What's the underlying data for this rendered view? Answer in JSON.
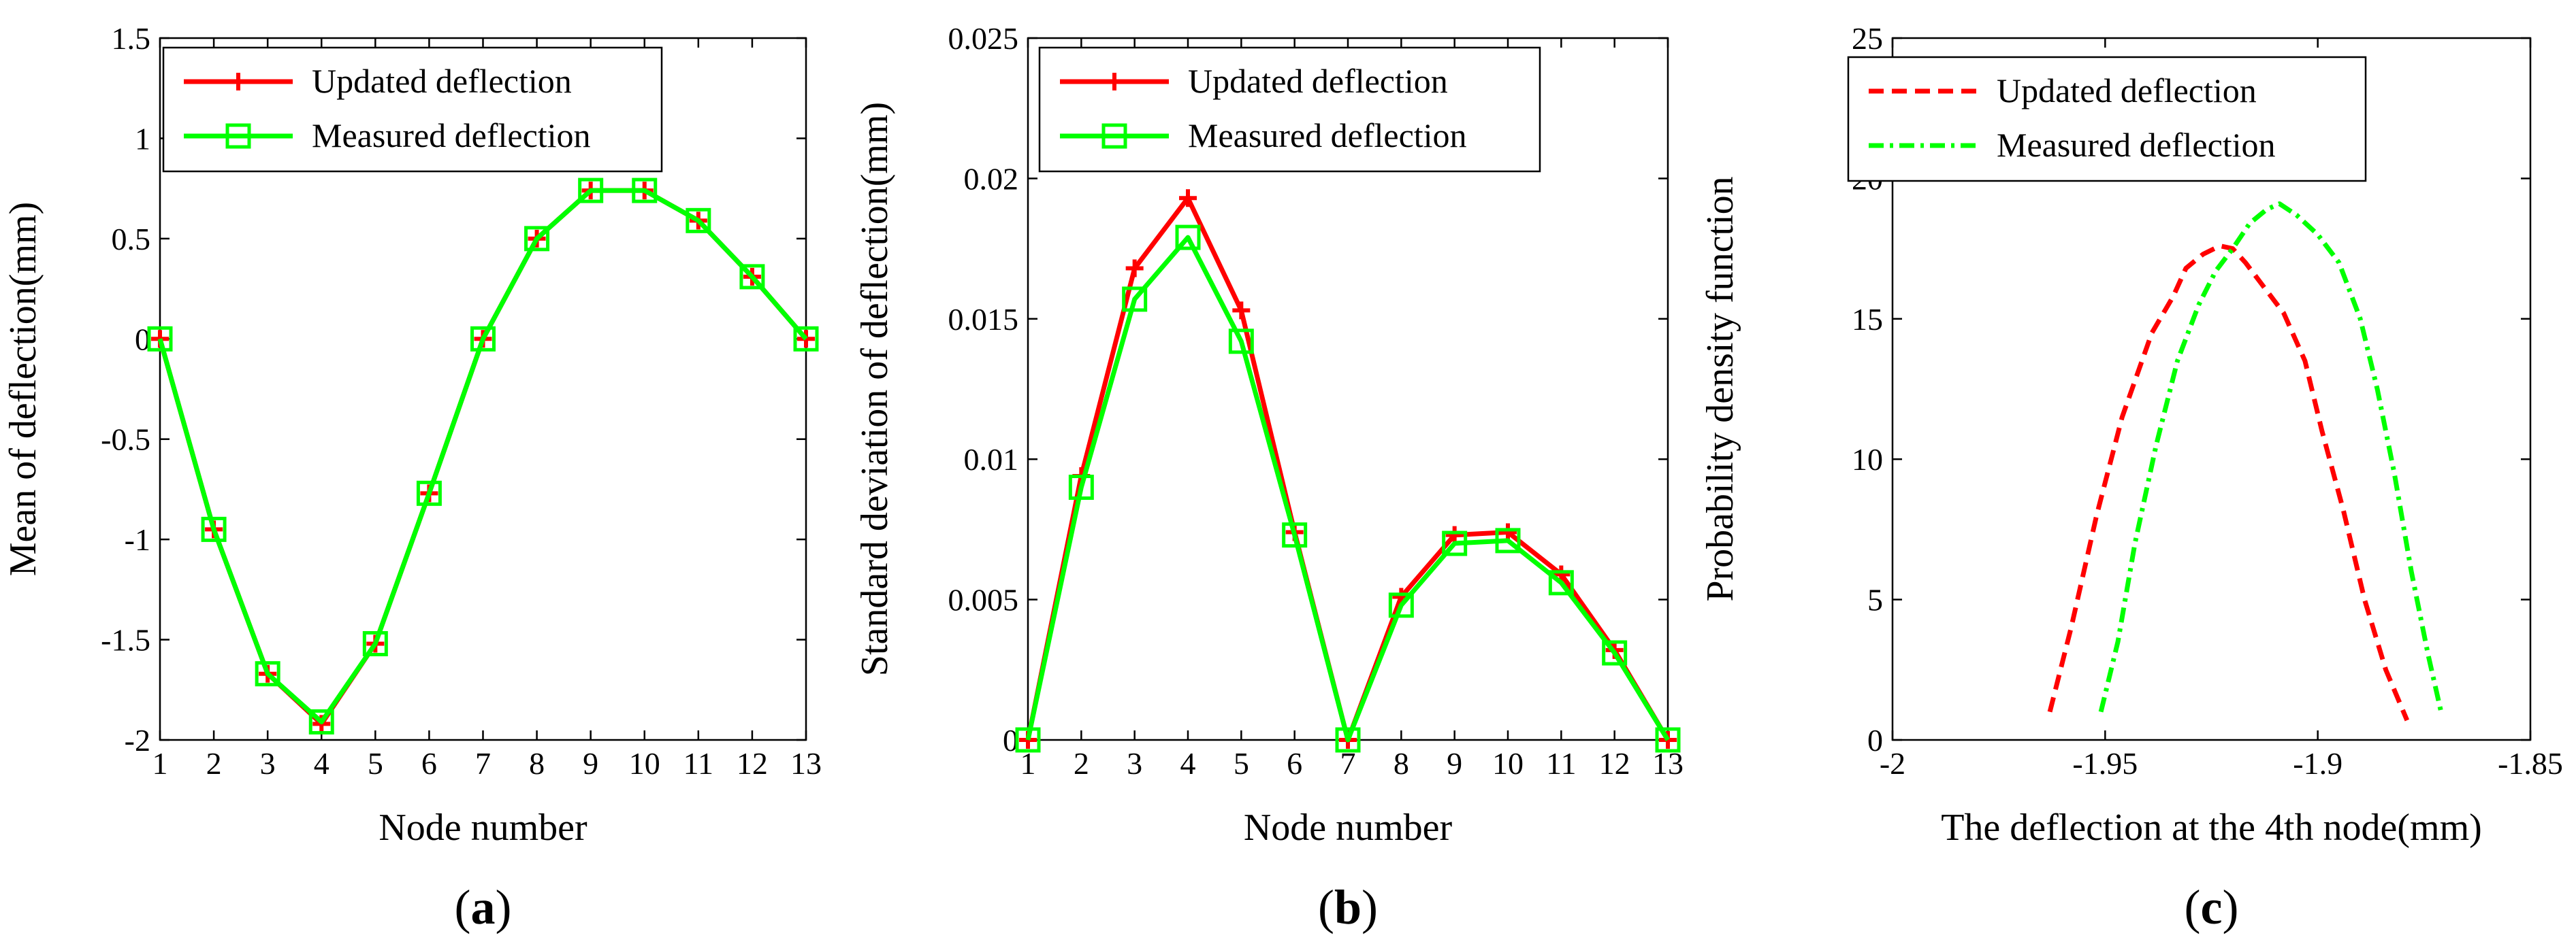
{
  "chart_data": [
    {
      "type": "line",
      "caption_open": "(",
      "caption": "a",
      "caption_close": ")",
      "xlabel": "Node number",
      "ylabel": "Mean of deflection(mm)",
      "xlim": [
        1,
        13
      ],
      "ylim": [
        -2,
        1.5
      ],
      "xticks": [
        1,
        2,
        3,
        4,
        5,
        6,
        7,
        8,
        9,
        10,
        11,
        12,
        13
      ],
      "xtick_labels": [
        "1",
        "2",
        "3",
        "4",
        "5",
        "6",
        "7",
        "8",
        "9",
        "10",
        "11",
        "12",
        "13"
      ],
      "yticks": [
        -2,
        -1.5,
        -1,
        -0.5,
        0,
        0.5,
        1,
        1.5
      ],
      "ytick_labels": [
        "-2",
        "-1.5",
        "-1",
        "-0.5",
        "0",
        "0.5",
        "1",
        "1.5"
      ],
      "legend_position": "top-left",
      "series": [
        {
          "name": "Updated deflection",
          "color": "#ff0000",
          "marker": "plus",
          "dash": "solid",
          "x": [
            1,
            2,
            3,
            4,
            5,
            6,
            7,
            8,
            9,
            10,
            11,
            12,
            13
          ],
          "y": [
            0,
            -0.95,
            -1.67,
            -1.92,
            -1.52,
            -0.77,
            0,
            0.5,
            0.74,
            0.74,
            0.59,
            0.31,
            0
          ]
        },
        {
          "name": "Measured deflection",
          "color": "#00ff00",
          "marker": "square",
          "dash": "solid",
          "x": [
            1,
            2,
            3,
            4,
            5,
            6,
            7,
            8,
            9,
            10,
            11,
            12,
            13
          ],
          "y": [
            0,
            -0.95,
            -1.67,
            -1.91,
            -1.52,
            -0.77,
            0,
            0.5,
            0.74,
            0.74,
            0.59,
            0.31,
            0
          ]
        }
      ]
    },
    {
      "type": "line",
      "caption_open": "(",
      "caption": "b",
      "caption_close": ")",
      "xlabel": "Node number",
      "ylabel": "Standard deviation of deflection(mm)",
      "xlim": [
        1,
        13
      ],
      "ylim": [
        0,
        0.025
      ],
      "xticks": [
        1,
        2,
        3,
        4,
        5,
        6,
        7,
        8,
        9,
        10,
        11,
        12,
        13
      ],
      "xtick_labels": [
        "1",
        "2",
        "3",
        "4",
        "5",
        "6",
        "7",
        "8",
        "9",
        "10",
        "11",
        "12",
        "13"
      ],
      "yticks": [
        0,
        0.005,
        0.01,
        0.015,
        0.02,
        0.025
      ],
      "ytick_labels": [
        "0",
        "0.005",
        "0.01",
        "0.015",
        "0.02",
        "0.025"
      ],
      "legend_position": "top-right",
      "series": [
        {
          "name": "Updated deflection",
          "color": "#ff0000",
          "marker": "plus",
          "dash": "solid",
          "x": [
            1,
            2,
            3,
            4,
            5,
            6,
            7,
            8,
            9,
            10,
            11,
            12,
            13
          ],
          "y": [
            0,
            0.0094,
            0.0168,
            0.0193,
            0.0153,
            0.0074,
            0,
            0.0051,
            0.0073,
            0.0074,
            0.0059,
            0.0032,
            0
          ]
        },
        {
          "name": "Measured deflection",
          "color": "#00ff00",
          "marker": "square",
          "dash": "solid",
          "x": [
            1,
            2,
            3,
            4,
            5,
            6,
            7,
            8,
            9,
            10,
            11,
            12,
            13
          ],
          "y": [
            0,
            0.009,
            0.0157,
            0.0179,
            0.0142,
            0.0073,
            0,
            0.0048,
            0.007,
            0.0071,
            0.0056,
            0.0031,
            0
          ]
        }
      ]
    },
    {
      "type": "line",
      "caption_open": "(",
      "caption": "c",
      "caption_close": ")",
      "xlabel": "The deflection at the 4th node(mm)",
      "ylabel": "Probability density function",
      "xlim": [
        -2,
        -1.85
      ],
      "ylim": [
        0,
        25
      ],
      "xticks": [
        -2,
        -1.95,
        -1.9,
        -1.85
      ],
      "xtick_labels": [
        "-2",
        "-1.95",
        "-1.9",
        "-1.85"
      ],
      "yticks": [
        0,
        5,
        10,
        15,
        20,
        25
      ],
      "ytick_labels": [
        "0",
        "5",
        "10",
        "15",
        "20",
        "25"
      ],
      "legend_position": "top-left",
      "series": [
        {
          "name": "Updated deflection",
          "color": "#ff0000",
          "marker": "none",
          "dash": "dashed",
          "x": [
            -1.963,
            -1.958,
            -1.952,
            -1.946,
            -1.939,
            -1.934,
            -1.931,
            -1.927,
            -1.923,
            -1.92,
            -1.917,
            -1.913,
            -1.908,
            -1.903,
            -1.899,
            -1.894,
            -1.889,
            -1.884,
            -1.879
          ],
          "y": [
            1,
            4,
            8,
            11.5,
            14.5,
            15.8,
            16.8,
            17.3,
            17.6,
            17.5,
            17,
            16.2,
            15.2,
            13.5,
            11,
            8.2,
            5,
            2.5,
            0.7
          ]
        },
        {
          "name": "Measured deflection",
          "color": "#00ff00",
          "marker": "none",
          "dash": "dashdot",
          "x": [
            -1.951,
            -1.947,
            -1.943,
            -1.938,
            -1.933,
            -1.928,
            -1.924,
            -1.92,
            -1.916,
            -1.912,
            -1.909,
            -1.905,
            -1.9,
            -1.895,
            -1.89,
            -1.886,
            -1.882,
            -1.878,
            -1.874,
            -1.871
          ],
          "y": [
            1,
            3.5,
            7,
            10.5,
            13.5,
            15.5,
            16.7,
            17.5,
            18.4,
            18.9,
            19.1,
            18.7,
            18,
            17,
            15,
            12.5,
            9.5,
            6,
            3,
            1
          ]
        }
      ]
    }
  ]
}
